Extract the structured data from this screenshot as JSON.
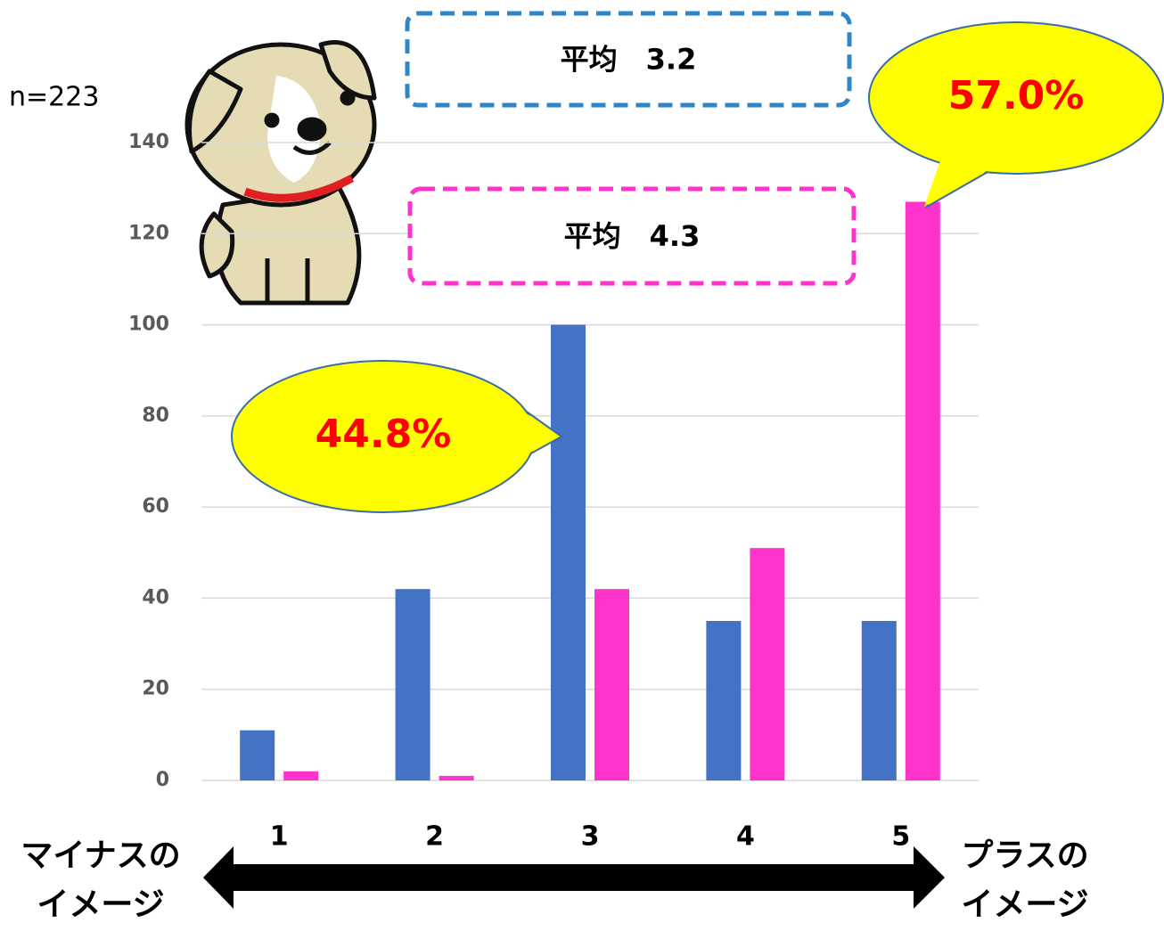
{
  "chart_data": {
    "type": "bar",
    "categories": [
      "1",
      "2",
      "3",
      "4",
      "5"
    ],
    "series": [
      {
        "color": "#4472c4",
        "values": [
          11,
          42,
          100,
          35,
          35
        ]
      },
      {
        "color": "#ff33cc",
        "values": [
          2,
          1,
          42,
          51,
          127
        ]
      }
    ],
    "ylim": [
      0,
      140
    ],
    "yticks": [
      0,
      20,
      40,
      60,
      80,
      100,
      120,
      140
    ],
    "grid": true,
    "sample_note": "n=223",
    "average_boxes": [
      {
        "text": "平均　3.2",
        "color": "#2e86c8"
      },
      {
        "text": "平均　4.3",
        "color": "#ff33cc"
      }
    ],
    "callouts": [
      "44.8%",
      "57.0%"
    ],
    "left_label": [
      "マイナスの",
      "イメージ"
    ],
    "right_label": [
      "プラスの",
      "イメージ"
    ]
  }
}
